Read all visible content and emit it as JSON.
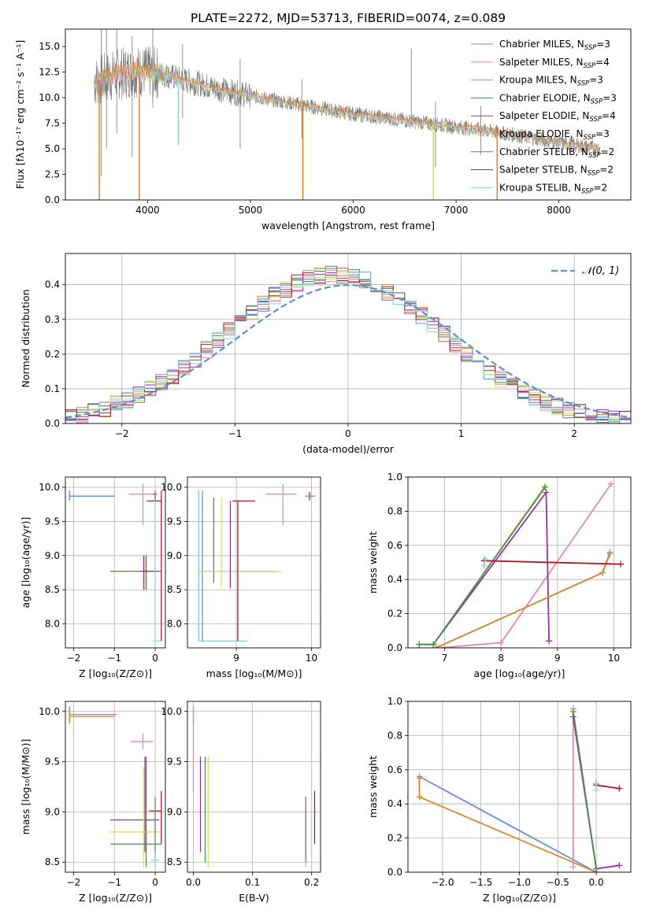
{
  "palette": {
    "chabrier_miles": "#6a8fd8",
    "salpeter_miles": "#e586b8",
    "kroupa_miles": "#d98a2b",
    "chabrier_elodie": "#4f8a5a",
    "salpeter_elodie": "#9b2fa8",
    "kroupa_elodie": "#c9e86a",
    "chabrier_stelib": "#777777",
    "salpeter_stelib": "#b01c2a",
    "kroupa_stelib": "#8fd6dd",
    "model_orange": "#e07a20",
    "normal_curve": "#5b8fd6"
  },
  "chart_data": [
    {
      "id": "spectrum",
      "type": "line",
      "title": "PLATE=2272, MJD=53713, FIBERID=0074, z=0.089",
      "xlabel": "wavelength [Angstrom, rest frame]",
      "ylabel": "Flux [fλ10⁻¹⁷ erg cm⁻² s⁻¹ A⁻¹]",
      "xlim": [
        3200,
        8700
      ],
      "ylim": [
        0,
        16.7
      ],
      "xticks": [
        4000,
        5000,
        6000,
        7000,
        8000
      ],
      "yticks": [
        0.0,
        2.5,
        5.0,
        7.5,
        10.0,
        12.5,
        15.0
      ],
      "xtick_labels": [
        "4000",
        "5000",
        "6000",
        "7000",
        "8000"
      ],
      "ytick_labels": [
        "0.0",
        "2.5",
        "5.0",
        "7.5",
        "10.0",
        "12.5",
        "15.0"
      ],
      "grid": false,
      "legend_position": "top-right",
      "legend": [
        {
          "label": "Chabrier MILES, N",
          "sub": "SSP",
          "n": "=3",
          "color": "#6a8fd8"
        },
        {
          "label": "Salpeter MILES, N",
          "sub": "SSP",
          "n": "=4",
          "color": "#e586b8"
        },
        {
          "label": "Kroupa MILES, N",
          "sub": "SSP",
          "n": "=3",
          "color": "#d98a2b"
        },
        {
          "label": "Chabrier ELODIE, N",
          "sub": "SSP",
          "n": "=3",
          "color": "#4f8a5a"
        },
        {
          "label": "Salpeter ELODIE, N",
          "sub": "SSP",
          "n": "=4",
          "color": "#9b2fa8"
        },
        {
          "label": "Kroupa ELODIE, N",
          "sub": "SSP",
          "n": "=3",
          "color": "#c9e86a"
        },
        {
          "label": "Chabrier STELIB, N",
          "sub": "SSP",
          "n": "=2",
          "color": "#777777"
        },
        {
          "label": "Salpeter STELIB, N",
          "sub": "SSP",
          "n": "=2",
          "color": "#b01c2a"
        },
        {
          "label": "Kroupa STELIB, N",
          "sub": "SSP",
          "n": "=2",
          "color": "#8fd6dd"
        }
      ],
      "continuum": {
        "x": [
          3500,
          3700,
          3900,
          4100,
          4400,
          4800,
          5200,
          5600,
          6000,
          6400,
          6800,
          7200,
          7600,
          8000,
          8400
        ],
        "y": [
          11.6,
          12.3,
          12.6,
          12.4,
          11.6,
          10.6,
          9.8,
          9.1,
          8.4,
          7.9,
          7.4,
          6.9,
          6.3,
          5.6,
          5.0
        ]
      },
      "data_spikes": [
        {
          "x": 3550,
          "y0": 2.3,
          "y1": 16.7
        },
        {
          "x": 3600,
          "y0": 5.0,
          "y1": 16.7
        },
        {
          "x": 3700,
          "y0": 6.5,
          "y1": 16.7
        },
        {
          "x": 3850,
          "y0": 4.2,
          "y1": 16.0
        },
        {
          "x": 4050,
          "y0": 9.0,
          "y1": 16.7
        },
        {
          "x": 4340,
          "y0": 8.0,
          "y1": 15.2
        },
        {
          "x": 4900,
          "y0": 5.0,
          "y1": 13.8
        },
        {
          "x": 5500,
          "y0": 6.0,
          "y1": 11.8
        },
        {
          "x": 6565,
          "y0": 7.5,
          "y1": 14.8
        },
        {
          "x": 6800,
          "y0": 3.2,
          "y1": 9.6
        },
        {
          "x": 7240,
          "y0": 4.4,
          "y1": 9.2
        }
      ],
      "model_dips": [
        {
          "x": 3530,
          "y": 0.0
        },
        {
          "x": 3920,
          "y": 0.0
        },
        {
          "x": 4300,
          "y": 5.4
        },
        {
          "x": 5510,
          "y": 0.0
        },
        {
          "x": 6780,
          "y": 0.0
        },
        {
          "x": 7400,
          "y": 0.0
        }
      ]
    },
    {
      "id": "residual_hist",
      "type": "line",
      "xlabel": "(data-model)/error",
      "ylabel": "Normed distribution",
      "xlim": [
        -2.5,
        2.5
      ],
      "ylim": [
        0.0,
        0.49
      ],
      "xticks": [
        -2,
        -1,
        0,
        1,
        2
      ],
      "yticks": [
        0.0,
        0.1,
        0.2,
        0.3,
        0.4
      ],
      "xtick_labels": [
        "−2",
        "−1",
        "0",
        "1",
        "2"
      ],
      "ytick_labels": [
        "0.0",
        "0.1",
        "0.2",
        "0.3",
        "0.4"
      ],
      "grid": true,
      "legend_position": "top-right",
      "legend": [
        {
          "label": "𝒩(0, 1)",
          "color": "#5b8fd6",
          "style": "dashed"
        }
      ],
      "normal_curve": {
        "mean": 0,
        "sigma": 1
      }
    },
    {
      "id": "age_vs_Z",
      "type": "scatter",
      "xlabel": "Z [log₁₀(Z/Z⊙)]",
      "ylabel": "age  [log₁₀(age/yr)]",
      "xlim": [
        -2.2,
        0.25
      ],
      "ylim": [
        7.65,
        10.15
      ],
      "xticks": [
        -2,
        -1,
        0
      ],
      "yticks": [
        8.0,
        8.5,
        9.0,
        9.5,
        10.0
      ],
      "xtick_labels": [
        "−2",
        "−1",
        "0"
      ],
      "ytick_labels": [
        "8.0",
        "8.5",
        "9.0",
        "9.5",
        "10.0"
      ],
      "grid": true
    },
    {
      "id": "age_vs_mass",
      "type": "scatter",
      "xlabel": "mass [log₁₀(M/M⊙)]",
      "xlim": [
        8.35,
        10.12
      ],
      "ylim": [
        7.65,
        10.15
      ],
      "xticks": [
        9,
        10
      ],
      "yticks": [
        8.0,
        8.5,
        9.0,
        9.5,
        10.0
      ],
      "xtick_labels": [
        "9",
        "10"
      ],
      "ytick_labels": [
        "8.0",
        "8.5",
        "9.0",
        "9.5",
        "10.0"
      ],
      "grid": true
    },
    {
      "id": "massweight_vs_age",
      "type": "line",
      "xlabel": "age  [log₁₀(age/yr)]",
      "ylabel": "mass weight",
      "xlim": [
        6.35,
        10.3
      ],
      "ylim": [
        0.0,
        1.0
      ],
      "xticks": [
        7,
        8,
        9,
        10
      ],
      "yticks": [
        0.0,
        0.2,
        0.4,
        0.6,
        0.8,
        1.0
      ],
      "xtick_labels": [
        "7",
        "8",
        "9",
        "10"
      ],
      "ytick_labels": [
        "0.0",
        "0.2",
        "0.4",
        "0.6",
        "0.8",
        "1.0"
      ],
      "grid": true,
      "series": [
        {
          "color": "#e586b8",
          "x": [
            6.9,
            8.0,
            9.95
          ],
          "y": [
            0.0,
            0.03,
            0.96
          ]
        },
        {
          "color": "#9b2fa8",
          "x": [
            6.55,
            6.8,
            8.8,
            8.85
          ],
          "y": [
            0.02,
            0.02,
            0.91,
            0.04
          ]
        },
        {
          "color": "#c9e86a",
          "x": [
            6.55,
            6.8,
            8.78
          ],
          "y": [
            0.02,
            0.02,
            0.95
          ]
        },
        {
          "color": "#4f8a5a",
          "x": [
            6.55,
            6.8,
            8.78
          ],
          "y": [
            0.02,
            0.02,
            0.94
          ]
        },
        {
          "color": "#6a8fd8",
          "x": [
            6.85,
            9.8,
            9.93
          ],
          "y": [
            0.0,
            0.44,
            0.56
          ]
        },
        {
          "color": "#d98a2b",
          "x": [
            6.85,
            9.8,
            9.93
          ],
          "y": [
            0.0,
            0.44,
            0.55
          ]
        },
        {
          "color": "#b01c2a",
          "x": [
            7.7,
            10.12
          ],
          "y": [
            0.51,
            0.49
          ]
        },
        {
          "color": "#8fd6dd",
          "x": [
            7.7,
            7.72
          ],
          "y": [
            0.48,
            0.52
          ]
        }
      ]
    },
    {
      "id": "mass_vs_Z",
      "type": "scatter",
      "xlabel": "Z [log₁₀(Z/Z⊙)]",
      "ylabel": "mass [log₁₀(M/M⊙)]",
      "xlim": [
        -2.2,
        0.25
      ],
      "ylim": [
        8.4,
        10.1
      ],
      "xticks": [
        -2,
        -1,
        0
      ],
      "yticks": [
        8.5,
        9.0,
        9.5,
        10.0
      ],
      "xtick_labels": [
        "−2",
        "−1",
        "0"
      ],
      "ytick_labels": [
        "8.5",
        "9.0",
        "9.5",
        "10.0"
      ],
      "grid": true
    },
    {
      "id": "mass_vs_ebv",
      "type": "scatter",
      "xlabel": "E(B-V)",
      "xlim": [
        -0.01,
        0.215
      ],
      "ylim": [
        8.4,
        10.1
      ],
      "xticks": [
        0.0,
        0.1,
        0.2
      ],
      "yticks": [
        8.5,
        9.0,
        9.5,
        10.0
      ],
      "xtick_labels": [
        "0.0",
        "0.1",
        "0.2"
      ],
      "ytick_labels": [
        "8.5",
        "9.0",
        "9.5",
        "10.0"
      ],
      "grid": true
    },
    {
      "id": "massweight_vs_Z",
      "type": "line",
      "xlabel": "Z [log₁₀(Z/Z⊙)]",
      "ylabel": "mass weight",
      "xlim": [
        -2.45,
        0.45
      ],
      "ylim": [
        0.0,
        1.0
      ],
      "xticks": [
        -2.0,
        -1.5,
        -1.0,
        -0.5,
        0.0
      ],
      "yticks": [
        0.0,
        0.2,
        0.4,
        0.6,
        0.8,
        1.0
      ],
      "xtick_labels": [
        "−2.0",
        "−1.5",
        "−1.0",
        "−0.5",
        "0.0"
      ],
      "ytick_labels": [
        "0.0",
        "0.2",
        "0.4",
        "0.6",
        "0.8",
        "1.0"
      ],
      "grid": true,
      "series": [
        {
          "color": "#6a8fd8",
          "x": [
            -2.3,
            -2.3,
            0.0
          ],
          "y": [
            0.44,
            0.56,
            0.0
          ]
        },
        {
          "color": "#d98a2b",
          "x": [
            -2.3,
            -2.3,
            0.0
          ],
          "y": [
            0.55,
            0.44,
            0.0
          ]
        },
        {
          "color": "#e586b8",
          "x": [
            -0.3,
            -0.3
          ],
          "y": [
            0.03,
            0.96
          ]
        },
        {
          "color": "#c9e86a",
          "x": [
            -0.3,
            0.0
          ],
          "y": [
            0.95,
            0.02
          ]
        },
        {
          "color": "#9b2fa8",
          "x": [
            -0.3,
            0.0,
            0.3
          ],
          "y": [
            0.91,
            0.02,
            0.04
          ]
        },
        {
          "color": "#4f8a5a",
          "x": [
            -0.3,
            0.0
          ],
          "y": [
            0.94,
            0.02
          ]
        },
        {
          "color": "#b01c2a",
          "x": [
            0.0,
            0.0,
            0.3
          ],
          "y": [
            0.52,
            0.51,
            0.49
          ]
        },
        {
          "color": "#8fd6dd",
          "x": [
            0.0,
            0.0
          ],
          "y": [
            0.48,
            0.52
          ]
        }
      ]
    }
  ]
}
